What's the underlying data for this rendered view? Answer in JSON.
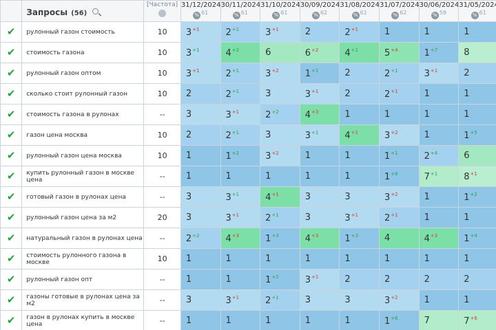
{
  "header": {
    "title": "Запросы",
    "count": "(56)",
    "freq_label": "[Частота]",
    "freq_badge": "$"
  },
  "dates": [
    {
      "date": "31/12/2024",
      "count": "61"
    },
    {
      "date": "30/11/2024",
      "count": "61"
    },
    {
      "date": "31/10/2024",
      "count": "61"
    },
    {
      "date": "30/09/2024",
      "count": "62"
    },
    {
      "date": "31/08/2024",
      "count": "61"
    },
    {
      "date": "31/07/2024",
      "count": "62"
    },
    {
      "date": "30/06/2024",
      "count": "59"
    },
    {
      "date": "31/05/2024",
      "count": "61"
    }
  ],
  "rows": [
    {
      "query": "рулонный газон стоимость",
      "freq": "10",
      "cells": [
        {
          "v": "3",
          "d": "+1",
          "t": "dn"
        },
        {
          "v": "2",
          "d": "+1",
          "t": "up"
        },
        {
          "v": "3",
          "d": "+1",
          "t": "dn"
        },
        {
          "v": "2"
        },
        {
          "v": "2",
          "d": "+1",
          "t": "dn"
        },
        {
          "v": "1"
        },
        {
          "v": "1"
        },
        {
          "v": "1"
        }
      ]
    },
    {
      "query": "стоимость газона",
      "freq": "10",
      "cells": [
        {
          "v": "3",
          "d": "+1",
          "t": "up"
        },
        {
          "v": "4",
          "d": "+2",
          "t": "up"
        },
        {
          "v": "6"
        },
        {
          "v": "6",
          "d": "+2",
          "t": "dn"
        },
        {
          "v": "4",
          "d": "+1",
          "t": "up"
        },
        {
          "v": "5",
          "d": "+4",
          "t": "dn"
        },
        {
          "v": "1",
          "d": "+7",
          "t": "up"
        },
        {
          "v": "8"
        }
      ]
    },
    {
      "query": "рулонный газон оптом",
      "freq": "10",
      "cells": [
        {
          "v": "3",
          "d": "+1",
          "t": "dn"
        },
        {
          "v": "2",
          "d": "+1",
          "t": "up"
        },
        {
          "v": "3",
          "d": "+2",
          "t": "dn"
        },
        {
          "v": "1",
          "d": "+1",
          "t": "up"
        },
        {
          "v": "2"
        },
        {
          "v": "2",
          "d": "+1",
          "t": "up"
        },
        {
          "v": "3",
          "d": "+1",
          "t": "dn"
        },
        {
          "v": "2"
        }
      ]
    },
    {
      "query": "сколько стоит рулонный газон",
      "freq": "10",
      "cells": [
        {
          "v": "2"
        },
        {
          "v": "2",
          "d": "+1",
          "t": "up"
        },
        {
          "v": "3"
        },
        {
          "v": "3",
          "d": "+1",
          "t": "dn"
        },
        {
          "v": "2"
        },
        {
          "v": "2",
          "d": "+1",
          "t": "dn"
        },
        {
          "v": "1"
        },
        {
          "v": "1"
        }
      ]
    },
    {
      "query": "стоимость газона в рулонах",
      "freq": "--",
      "cells": [
        {
          "v": "3"
        },
        {
          "v": "3",
          "d": "+1",
          "t": "dn"
        },
        {
          "v": "2",
          "d": "+2",
          "t": "up"
        },
        {
          "v": "4",
          "d": "+3",
          "t": "dn"
        },
        {
          "v": "1"
        },
        {
          "v": "1"
        },
        {
          "v": "1"
        },
        {
          "v": "1"
        }
      ]
    },
    {
      "query": "газон цена москва",
      "freq": "10",
      "cells": [
        {
          "v": "2"
        },
        {
          "v": "2",
          "d": "+1",
          "t": "up"
        },
        {
          "v": "3"
        },
        {
          "v": "3",
          "d": "+1",
          "t": "up"
        },
        {
          "v": "4",
          "d": "+1",
          "t": "dn"
        },
        {
          "v": "3",
          "d": "+2",
          "t": "dn"
        },
        {
          "v": "1"
        },
        {
          "v": "1",
          "d": "+5",
          "t": "up"
        }
      ]
    },
    {
      "query": "рулонный газон цена москва",
      "freq": "10",
      "cells": [
        {
          "v": "1"
        },
        {
          "v": "1",
          "d": "+2",
          "t": "up"
        },
        {
          "v": "3",
          "d": "+2",
          "t": "dn"
        },
        {
          "v": "1"
        },
        {
          "v": "1"
        },
        {
          "v": "1",
          "d": "+1",
          "t": "up"
        },
        {
          "v": "2",
          "d": "+4",
          "t": "up"
        },
        {
          "v": "6"
        }
      ]
    },
    {
      "query": "купить рулонный газон в москве цена",
      "freq": "--",
      "cells": [
        {
          "v": "1"
        },
        {
          "v": "1"
        },
        {
          "v": "1"
        },
        {
          "v": "1"
        },
        {
          "v": "1"
        },
        {
          "v": "1",
          "d": "+6",
          "t": "up"
        },
        {
          "v": "7",
          "d": "+1",
          "t": "up"
        },
        {
          "v": "8",
          "d": "+1",
          "t": "dn"
        }
      ]
    },
    {
      "query": "готовый газон в рулонах цена",
      "freq": "--",
      "cells": [
        {
          "v": "3"
        },
        {
          "v": "3",
          "d": "+1",
          "t": "up"
        },
        {
          "v": "4",
          "d": "+1",
          "t": "dn"
        },
        {
          "v": "3"
        },
        {
          "v": "3"
        },
        {
          "v": "3",
          "d": "+2",
          "t": "dn"
        },
        {
          "v": "1"
        },
        {
          "v": "1",
          "d": "+2",
          "t": "up"
        }
      ]
    },
    {
      "query": "рулонный газон цена за м2",
      "freq": "20",
      "cells": [
        {
          "v": "3"
        },
        {
          "v": "3",
          "d": "+1",
          "t": "dn"
        },
        {
          "v": "2",
          "d": "+1",
          "t": "up"
        },
        {
          "v": "3"
        },
        {
          "v": "3",
          "d": "+1",
          "t": "dn"
        },
        {
          "v": "2",
          "d": "+1",
          "t": "dn"
        },
        {
          "v": "1"
        },
        {
          "v": "1"
        }
      ]
    },
    {
      "query": "натуральный газон в рулонах цена",
      "freq": "--",
      "cells": [
        {
          "v": "2",
          "d": "+2",
          "t": "up"
        },
        {
          "v": "4",
          "d": "+3",
          "t": "dn"
        },
        {
          "v": "1",
          "d": "+3",
          "t": "up"
        },
        {
          "v": "4",
          "d": "+3",
          "t": "dn"
        },
        {
          "v": "1",
          "d": "+3",
          "t": "up"
        },
        {
          "v": "4"
        },
        {
          "v": "4",
          "d": "+3",
          "t": "dn"
        },
        {
          "v": "1",
          "d": "+4",
          "t": "up"
        }
      ]
    },
    {
      "query": "стоимость рулонного газона в москве",
      "freq": "10",
      "cells": [
        {
          "v": "1"
        },
        {
          "v": "1"
        },
        {
          "v": "1"
        },
        {
          "v": "1"
        },
        {
          "v": "1"
        },
        {
          "v": "1"
        },
        {
          "v": "1"
        },
        {
          "v": "1"
        }
      ]
    },
    {
      "query": "рулонный газон опт",
      "freq": "--",
      "cells": [
        {
          "v": "1"
        },
        {
          "v": "1"
        },
        {
          "v": "1",
          "d": "+2",
          "t": "up"
        },
        {
          "v": "3",
          "d": "+1",
          "t": "dn"
        },
        {
          "v": "2"
        },
        {
          "v": "2"
        },
        {
          "v": "2"
        },
        {
          "v": "2"
        }
      ]
    },
    {
      "query": "газоны готовые в рулонах цена за м2",
      "freq": "--",
      "cells": [
        {
          "v": "3"
        },
        {
          "v": "3",
          "d": "+1",
          "t": "dn"
        },
        {
          "v": "2",
          "d": "+1",
          "t": "up"
        },
        {
          "v": "3"
        },
        {
          "v": "3"
        },
        {
          "v": "3",
          "d": "+2",
          "t": "dn"
        },
        {
          "v": "1"
        },
        {
          "v": "1"
        }
      ]
    },
    {
      "query": "газон в рулонах купить в москве цена",
      "freq": "--",
      "cells": [
        {
          "v": "1"
        },
        {
          "v": "1"
        },
        {
          "v": "1"
        },
        {
          "v": "1"
        },
        {
          "v": "1"
        },
        {
          "v": "1",
          "d": "+6",
          "t": "up"
        },
        {
          "v": "7"
        },
        {
          "v": "7",
          "d": "+6",
          "t": "dn"
        }
      ]
    }
  ]
}
